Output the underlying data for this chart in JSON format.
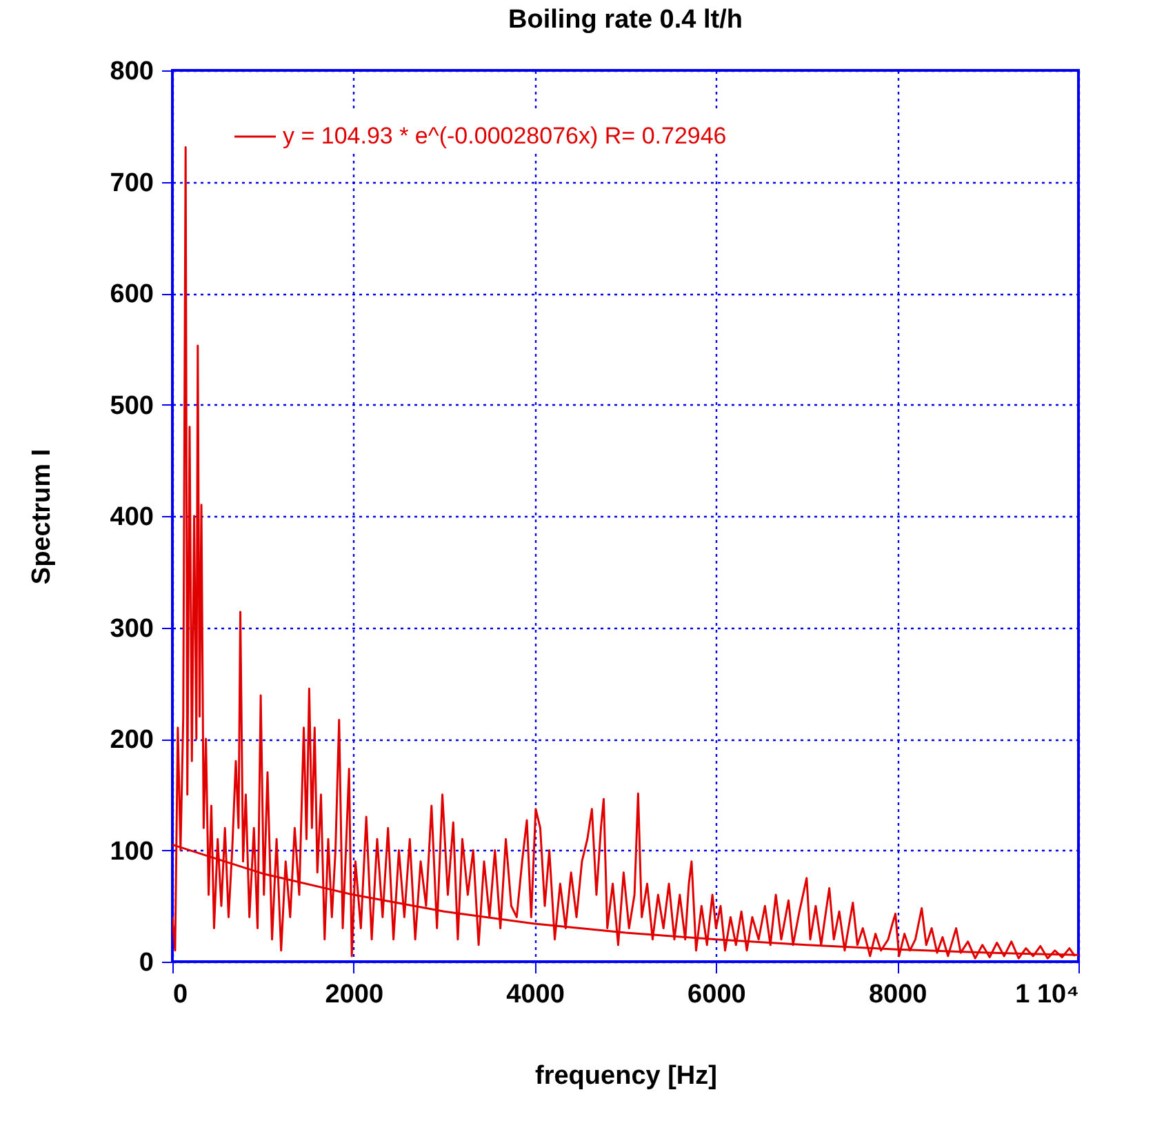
{
  "chart_data": {
    "type": "line",
    "title": "Boiling rate 0.4 lt/h",
    "xlabel": "frequency [Hz]",
    "ylabel": "Spectrum I",
    "xlim": [
      0,
      10000
    ],
    "ylim": [
      0,
      800
    ],
    "xticks": [
      0,
      2000,
      4000,
      6000,
      8000,
      {
        "value": 10000,
        "label": "1 10⁴"
      }
    ],
    "yticks": [
      0,
      100,
      200,
      300,
      400,
      500,
      600,
      700,
      800
    ],
    "grid": true,
    "legend": "top left",
    "marker": "none",
    "line_style": "solid",
    "series": [
      {
        "color": "#e00000",
        "x": [
          0,
          30,
          60,
          90,
          120,
          146,
          165,
          190,
          215,
          240,
          265,
          280,
          300,
          320,
          345,
          370,
          400,
          430,
          460,
          500,
          540,
          580,
          620,
          660,
          700,
          730,
          750,
          780,
          810,
          850,
          900,
          940,
          975,
          1010,
          1050,
          1100,
          1150,
          1200,
          1250,
          1300,
          1350,
          1400,
          1450,
          1480,
          1510,
          1540,
          1570,
          1600,
          1640,
          1680,
          1720,
          1760,
          1800,
          1840,
          1880,
          1920,
          1950,
          1980,
          2020,
          2080,
          2140,
          2200,
          2260,
          2320,
          2380,
          2440,
          2500,
          2560,
          2620,
          2680,
          2740,
          2800,
          2860,
          2920,
          2980,
          3040,
          3100,
          3150,
          3200,
          3260,
          3320,
          3380,
          3440,
          3500,
          3560,
          3620,
          3680,
          3740,
          3800,
          3860,
          3912,
          3960,
          4010,
          4060,
          4110,
          4160,
          4220,
          4280,
          4340,
          4400,
          4460,
          4520,
          4580,
          4630,
          4680,
          4730,
          4760,
          4800,
          4860,
          4920,
          4980,
          5040,
          5100,
          5140,
          5180,
          5240,
          5300,
          5360,
          5420,
          5480,
          5540,
          5600,
          5660,
          5700,
          5730,
          5780,
          5840,
          5900,
          5960,
          6000,
          6050,
          6100,
          6160,
          6220,
          6280,
          6340,
          6400,
          6470,
          6540,
          6600,
          6660,
          6720,
          6800,
          6850,
          6920,
          7000,
          7040,
          7100,
          7160,
          7250,
          7300,
          7360,
          7420,
          7510,
          7560,
          7620,
          7700,
          7760,
          7820,
          7900,
          7950,
          7980,
          8020,
          8080,
          8140,
          8200,
          8270,
          8320,
          8380,
          8440,
          8500,
          8560,
          8650,
          8700,
          8780,
          8860,
          8940,
          9020,
          9100,
          9180,
          9260,
          9340,
          9420,
          9500,
          9580,
          9660,
          9740,
          9820,
          9900,
          9960
        ],
        "values": [
          40,
          10,
          210,
          100,
          220,
          731,
          150,
          480,
          180,
          400,
          200,
          553,
          220,
          410,
          120,
          200,
          60,
          140,
          30,
          110,
          50,
          120,
          40,
          100,
          180,
          120,
          314,
          90,
          150,
          40,
          120,
          30,
          239,
          60,
          170,
          20,
          110,
          10,
          90,
          40,
          120,
          60,
          210,
          110,
          245,
          120,
          210,
          80,
          150,
          20,
          110,
          40,
          100,
          217,
          30,
          110,
          173,
          5,
          90,
          30,
          130,
          20,
          110,
          40,
          120,
          20,
          100,
          40,
          110,
          20,
          90,
          50,
          140,
          30,
          150,
          60,
          125,
          20,
          110,
          60,
          100,
          15,
          90,
          40,
          100,
          30,
          110,
          50,
          40,
          90,
          127,
          40,
          137,
          120,
          50,
          100,
          20,
          70,
          30,
          80,
          40,
          90,
          110,
          137,
          60,
          120,
          146,
          30,
          70,
          15,
          80,
          30,
          60,
          151,
          40,
          70,
          20,
          60,
          30,
          70,
          20,
          60,
          20,
          70,
          90,
          10,
          50,
          15,
          60,
          30,
          50,
          10,
          40,
          15,
          45,
          10,
          40,
          20,
          50,
          15,
          60,
          20,
          55,
          15,
          45,
          75,
          20,
          50,
          15,
          66,
          20,
          45,
          10,
          53,
          15,
          30,
          5,
          25,
          10,
          20,
          35,
          43,
          5,
          25,
          10,
          20,
          48,
          15,
          30,
          8,
          22,
          5,
          30,
          8,
          18,
          3,
          15,
          4,
          17,
          5,
          18,
          3,
          12,
          5,
          14,
          3,
          10,
          4,
          12,
          5
        ]
      },
      {
        "name": "y = 104.93 * e^(-0.00028076x)   R= 0.72946",
        "color": "#e00000",
        "x": [
          0,
          1000,
          2000,
          3000,
          4000,
          5000,
          6000,
          7000,
          8000,
          9000,
          10000
        ],
        "values": [
          105,
          79,
          60,
          45,
          34,
          26,
          20,
          15,
          11,
          8,
          6
        ]
      }
    ]
  }
}
